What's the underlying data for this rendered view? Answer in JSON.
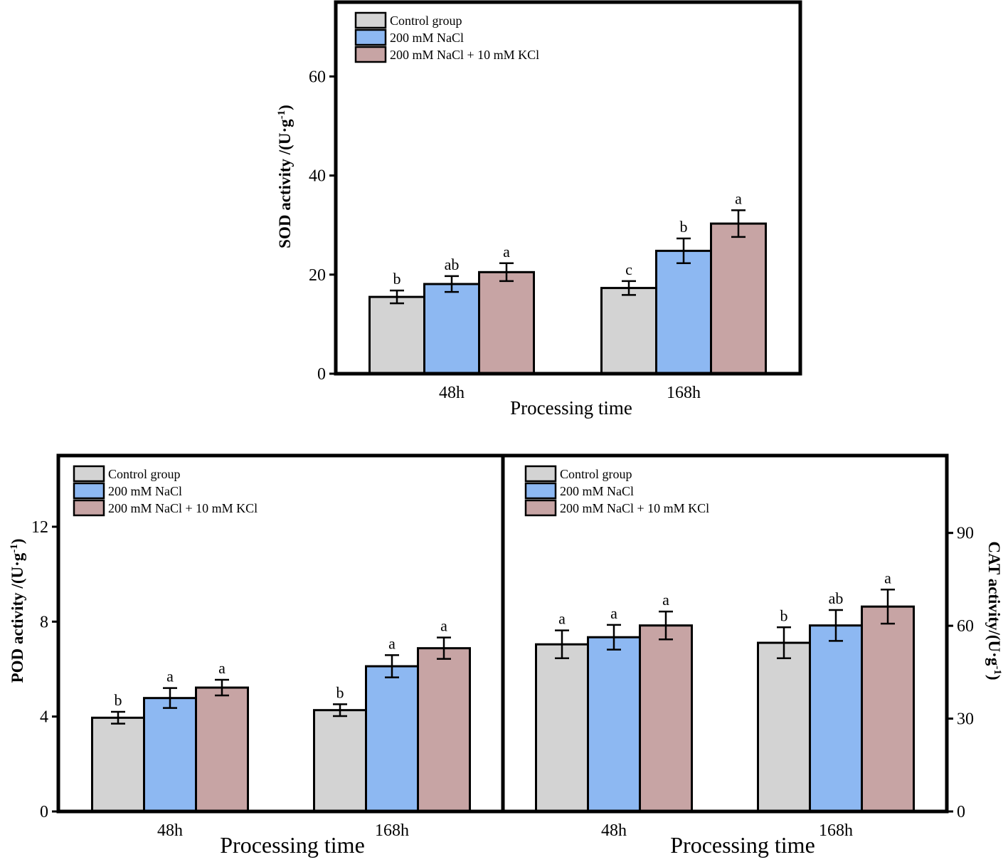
{
  "colors": {
    "control": "#d3d3d3",
    "nacl": "#8db8f2",
    "kcl": "#c7a4a4",
    "axis": "#000000"
  },
  "legend": [
    "Control group",
    "200 mM NaCl",
    "200 mM NaCl + 10 mM KCl"
  ],
  "chart_data": [
    {
      "id": "sod",
      "type": "bar",
      "title": "",
      "xlabel": "Processing time",
      "ylabel_main": "SOD activity /(U·g",
      "ylabel_sup": "-1",
      "ylabel_close": ")",
      "categories": [
        "48h",
        "168h"
      ],
      "ylim": [
        0,
        75
      ],
      "yticks": [
        0,
        20,
        40,
        60
      ],
      "series": [
        {
          "name": "Control group",
          "values": [
            15.5,
            17.3
          ],
          "errors": [
            1.3,
            1.4
          ],
          "letters": [
            "b",
            "c"
          ]
        },
        {
          "name": "200 mM NaCl",
          "values": [
            18.1,
            24.8
          ],
          "errors": [
            1.6,
            2.5
          ],
          "letters": [
            "ab",
            "b"
          ]
        },
        {
          "name": "200 mM NaCl + 10 mM KCl",
          "values": [
            20.5,
            30.3
          ],
          "errors": [
            1.8,
            2.7
          ],
          "letters": [
            "a",
            "a"
          ]
        }
      ]
    },
    {
      "id": "pod",
      "type": "bar",
      "title": "",
      "xlabel": "Processing time",
      "ylabel_main": "POD activity /(U·g",
      "ylabel_sup": "-1",
      "ylabel_close": ")",
      "categories": [
        "48h",
        "168h"
      ],
      "ylim": [
        0,
        15
      ],
      "yticks": [
        0,
        4,
        8,
        12
      ],
      "series": [
        {
          "name": "Control group",
          "values": [
            3.95,
            4.27
          ],
          "errors": [
            0.25,
            0.25
          ],
          "letters": [
            "b",
            "b"
          ]
        },
        {
          "name": "200 mM NaCl",
          "values": [
            4.78,
            6.12
          ],
          "errors": [
            0.42,
            0.47
          ],
          "letters": [
            "a",
            "a"
          ]
        },
        {
          "name": "200 mM NaCl + 10 mM KCl",
          "values": [
            5.22,
            6.88
          ],
          "errors": [
            0.33,
            0.45
          ],
          "letters": [
            "a",
            "a"
          ]
        }
      ]
    },
    {
      "id": "cat",
      "type": "bar",
      "title": "",
      "xlabel": "Processing time",
      "ylabel_main": "CAT activity/(U·g",
      "ylabel_sup": "-1",
      "ylabel_close": ")",
      "categories": [
        "48h",
        "168h"
      ],
      "ylim": [
        0,
        115
      ],
      "yticks": [
        0,
        30,
        60,
        90
      ],
      "series": [
        {
          "name": "Control group",
          "values": [
            54,
            54.5
          ],
          "errors": [
            4.5,
            5
          ],
          "letters": [
            "a",
            "b"
          ]
        },
        {
          "name": "200 mM NaCl",
          "values": [
            56.3,
            60.1
          ],
          "errors": [
            4,
            5
          ],
          "letters": [
            "a",
            "ab"
          ]
        },
        {
          "name": "200 mM NaCl + 10 mM KCl",
          "values": [
            60.1,
            66.2
          ],
          "errors": [
            4.5,
            5.5
          ],
          "letters": [
            "a",
            "a"
          ]
        }
      ]
    }
  ]
}
